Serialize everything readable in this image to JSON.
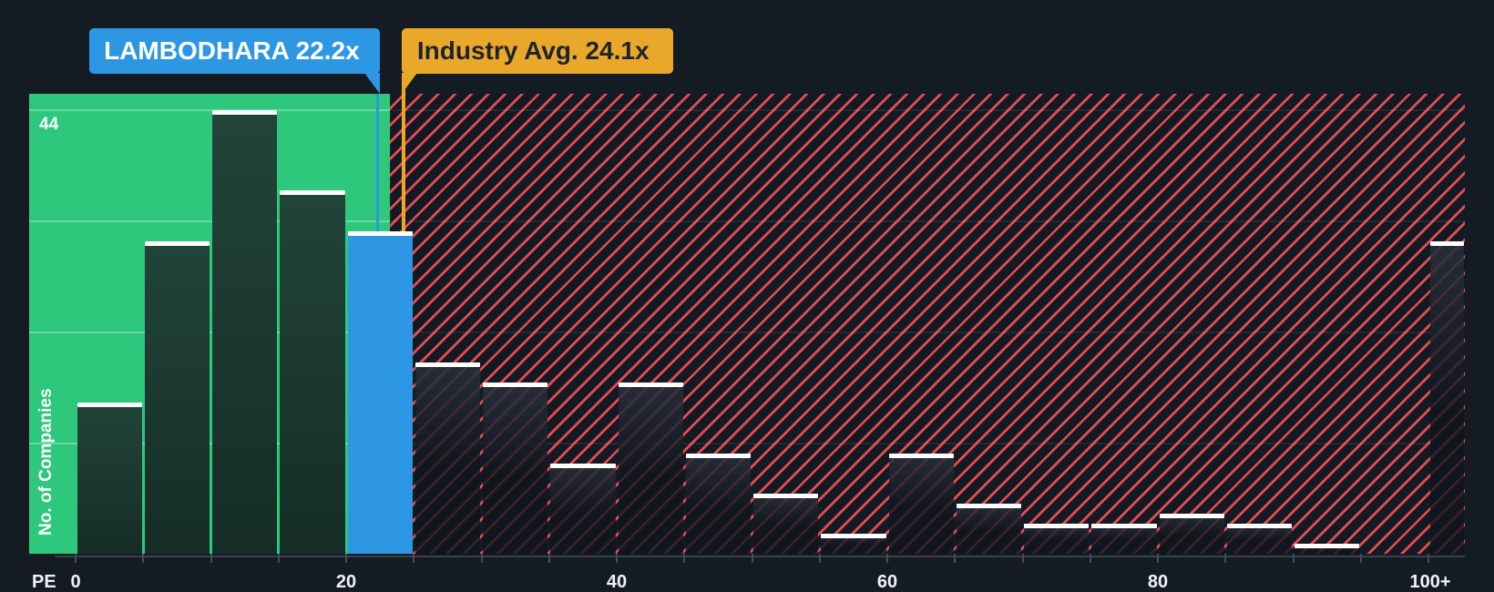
{
  "callouts": {
    "company": {
      "label": "LAMBODHARA 22.2x",
      "pe": 22.2,
      "color": "#2e97e3",
      "text_color": "#ffffff"
    },
    "industry": {
      "label": "Industry Avg. 24.1x",
      "pe": 24.1,
      "color": "#eaa82a",
      "text_color": "#1d242e"
    }
  },
  "y_axis": {
    "title": "No. of Companies",
    "top_gridline_label": "44"
  },
  "x_axis": {
    "title": "PE",
    "tick_labels": [
      {
        "label": "0",
        "pe": 0
      },
      {
        "label": "20",
        "pe": 20
      },
      {
        "label": "40",
        "pe": 40
      },
      {
        "label": "60",
        "pe": 60
      },
      {
        "label": "80",
        "pe": 80
      },
      {
        "label": "100+",
        "pe": 100
      }
    ]
  },
  "chart_data": {
    "type": "bar",
    "subtype": "histogram",
    "xlabel": "PE",
    "ylabel": "No. of Companies",
    "xlim": [
      0,
      100
    ],
    "ylim": [
      0,
      45.6
    ],
    "gridline_values": [
      11,
      22,
      33,
      44
    ],
    "grid": true,
    "bucket_size": 5,
    "company_marker": {
      "name": "LAMBODHARA",
      "pe": 22.2
    },
    "industry_marker": {
      "name": "Industry Avg.",
      "pe": 24.1
    },
    "zones_legend": {
      "green": "below industry average PE",
      "red": "above industry average PE",
      "highlight": "bucket containing LAMBODHARA PE"
    },
    "buckets": [
      {
        "range": "0-5",
        "start": 0,
        "count": 15,
        "zone": "green"
      },
      {
        "range": "5-10",
        "start": 5,
        "count": 31,
        "zone": "green"
      },
      {
        "range": "10-15",
        "start": 10,
        "count": 44,
        "zone": "green"
      },
      {
        "range": "15-20",
        "start": 15,
        "count": 36,
        "zone": "green"
      },
      {
        "range": "20-25",
        "start": 20,
        "count": 32,
        "zone": "highlight"
      },
      {
        "range": "25-30",
        "start": 25,
        "count": 19,
        "zone": "red"
      },
      {
        "range": "30-35",
        "start": 30,
        "count": 17,
        "zone": "red"
      },
      {
        "range": "35-40",
        "start": 35,
        "count": 9,
        "zone": "red"
      },
      {
        "range": "40-45",
        "start": 40,
        "count": 17,
        "zone": "red"
      },
      {
        "range": "45-50",
        "start": 45,
        "count": 10,
        "zone": "red"
      },
      {
        "range": "50-55",
        "start": 50,
        "count": 6,
        "zone": "red"
      },
      {
        "range": "55-60",
        "start": 55,
        "count": 2,
        "zone": "red"
      },
      {
        "range": "60-65",
        "start": 60,
        "count": 10,
        "zone": "red"
      },
      {
        "range": "65-70",
        "start": 65,
        "count": 5,
        "zone": "red"
      },
      {
        "range": "70-75",
        "start": 70,
        "count": 3,
        "zone": "red"
      },
      {
        "range": "75-80",
        "start": 75,
        "count": 3,
        "zone": "red"
      },
      {
        "range": "80-85",
        "start": 80,
        "count": 4,
        "zone": "red"
      },
      {
        "range": "85-90",
        "start": 85,
        "count": 3,
        "zone": "red"
      },
      {
        "range": "90-95",
        "start": 90,
        "count": 1,
        "zone": "red"
      },
      {
        "range": "95-100",
        "start": 95,
        "count": 0,
        "zone": "red"
      },
      {
        "range": "100+",
        "start": 100,
        "count": 31,
        "zone": "red"
      }
    ],
    "colors": {
      "page_background": "#151b23",
      "green_zone": "#2dc87c",
      "hatch_stripe": "#e54c51",
      "bar_dark": "#1d3d33",
      "bar_highlight": "#2e97e3",
      "bar_cap": "#ffffff",
      "axis_text": "#f0f3f6"
    }
  }
}
